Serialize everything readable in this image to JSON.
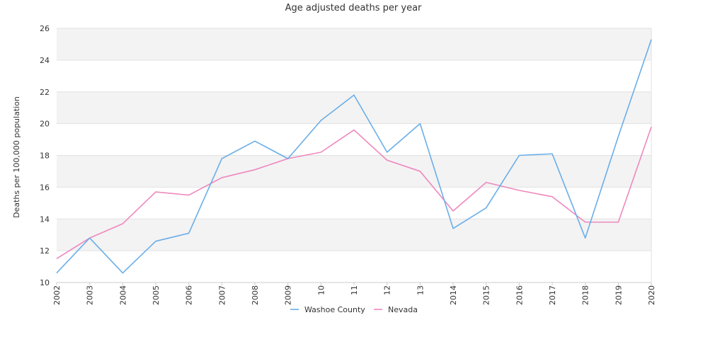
{
  "chart_data": {
    "type": "line",
    "title": "Age adjusted deaths per year",
    "xlabel": "",
    "ylabel": "Deaths per 100,000 population",
    "categories": [
      "2002",
      "2003",
      "2004",
      "2005",
      "2006",
      "2007",
      "2008",
      "2009",
      "10",
      "11",
      "12",
      "13",
      "2014",
      "2015",
      "2016",
      "2017",
      "2018",
      "2019",
      "2020"
    ],
    "ylim": [
      10,
      26
    ],
    "yticks": [
      10,
      12,
      14,
      16,
      18,
      20,
      22,
      24,
      26
    ],
    "grid": "alternating horizontal bands",
    "legend_position": "bottom",
    "series": [
      {
        "name": "Washoe County",
        "color": "#6aaee8",
        "values": [
          10.6,
          12.8,
          10.6,
          12.6,
          13.1,
          17.8,
          18.9,
          17.8,
          20.2,
          21.8,
          18.2,
          20.0,
          13.4,
          14.7,
          18.0,
          18.1,
          12.8,
          19.2,
          25.3
        ]
      },
      {
        "name": "Nevada",
        "color": "#ee88bf",
        "values": [
          11.5,
          12.8,
          13.7,
          15.7,
          15.5,
          16.6,
          17.1,
          17.8,
          18.2,
          19.6,
          17.7,
          17.0,
          14.5,
          16.3,
          15.8,
          15.4,
          13.8,
          13.8,
          19.8
        ]
      }
    ]
  }
}
